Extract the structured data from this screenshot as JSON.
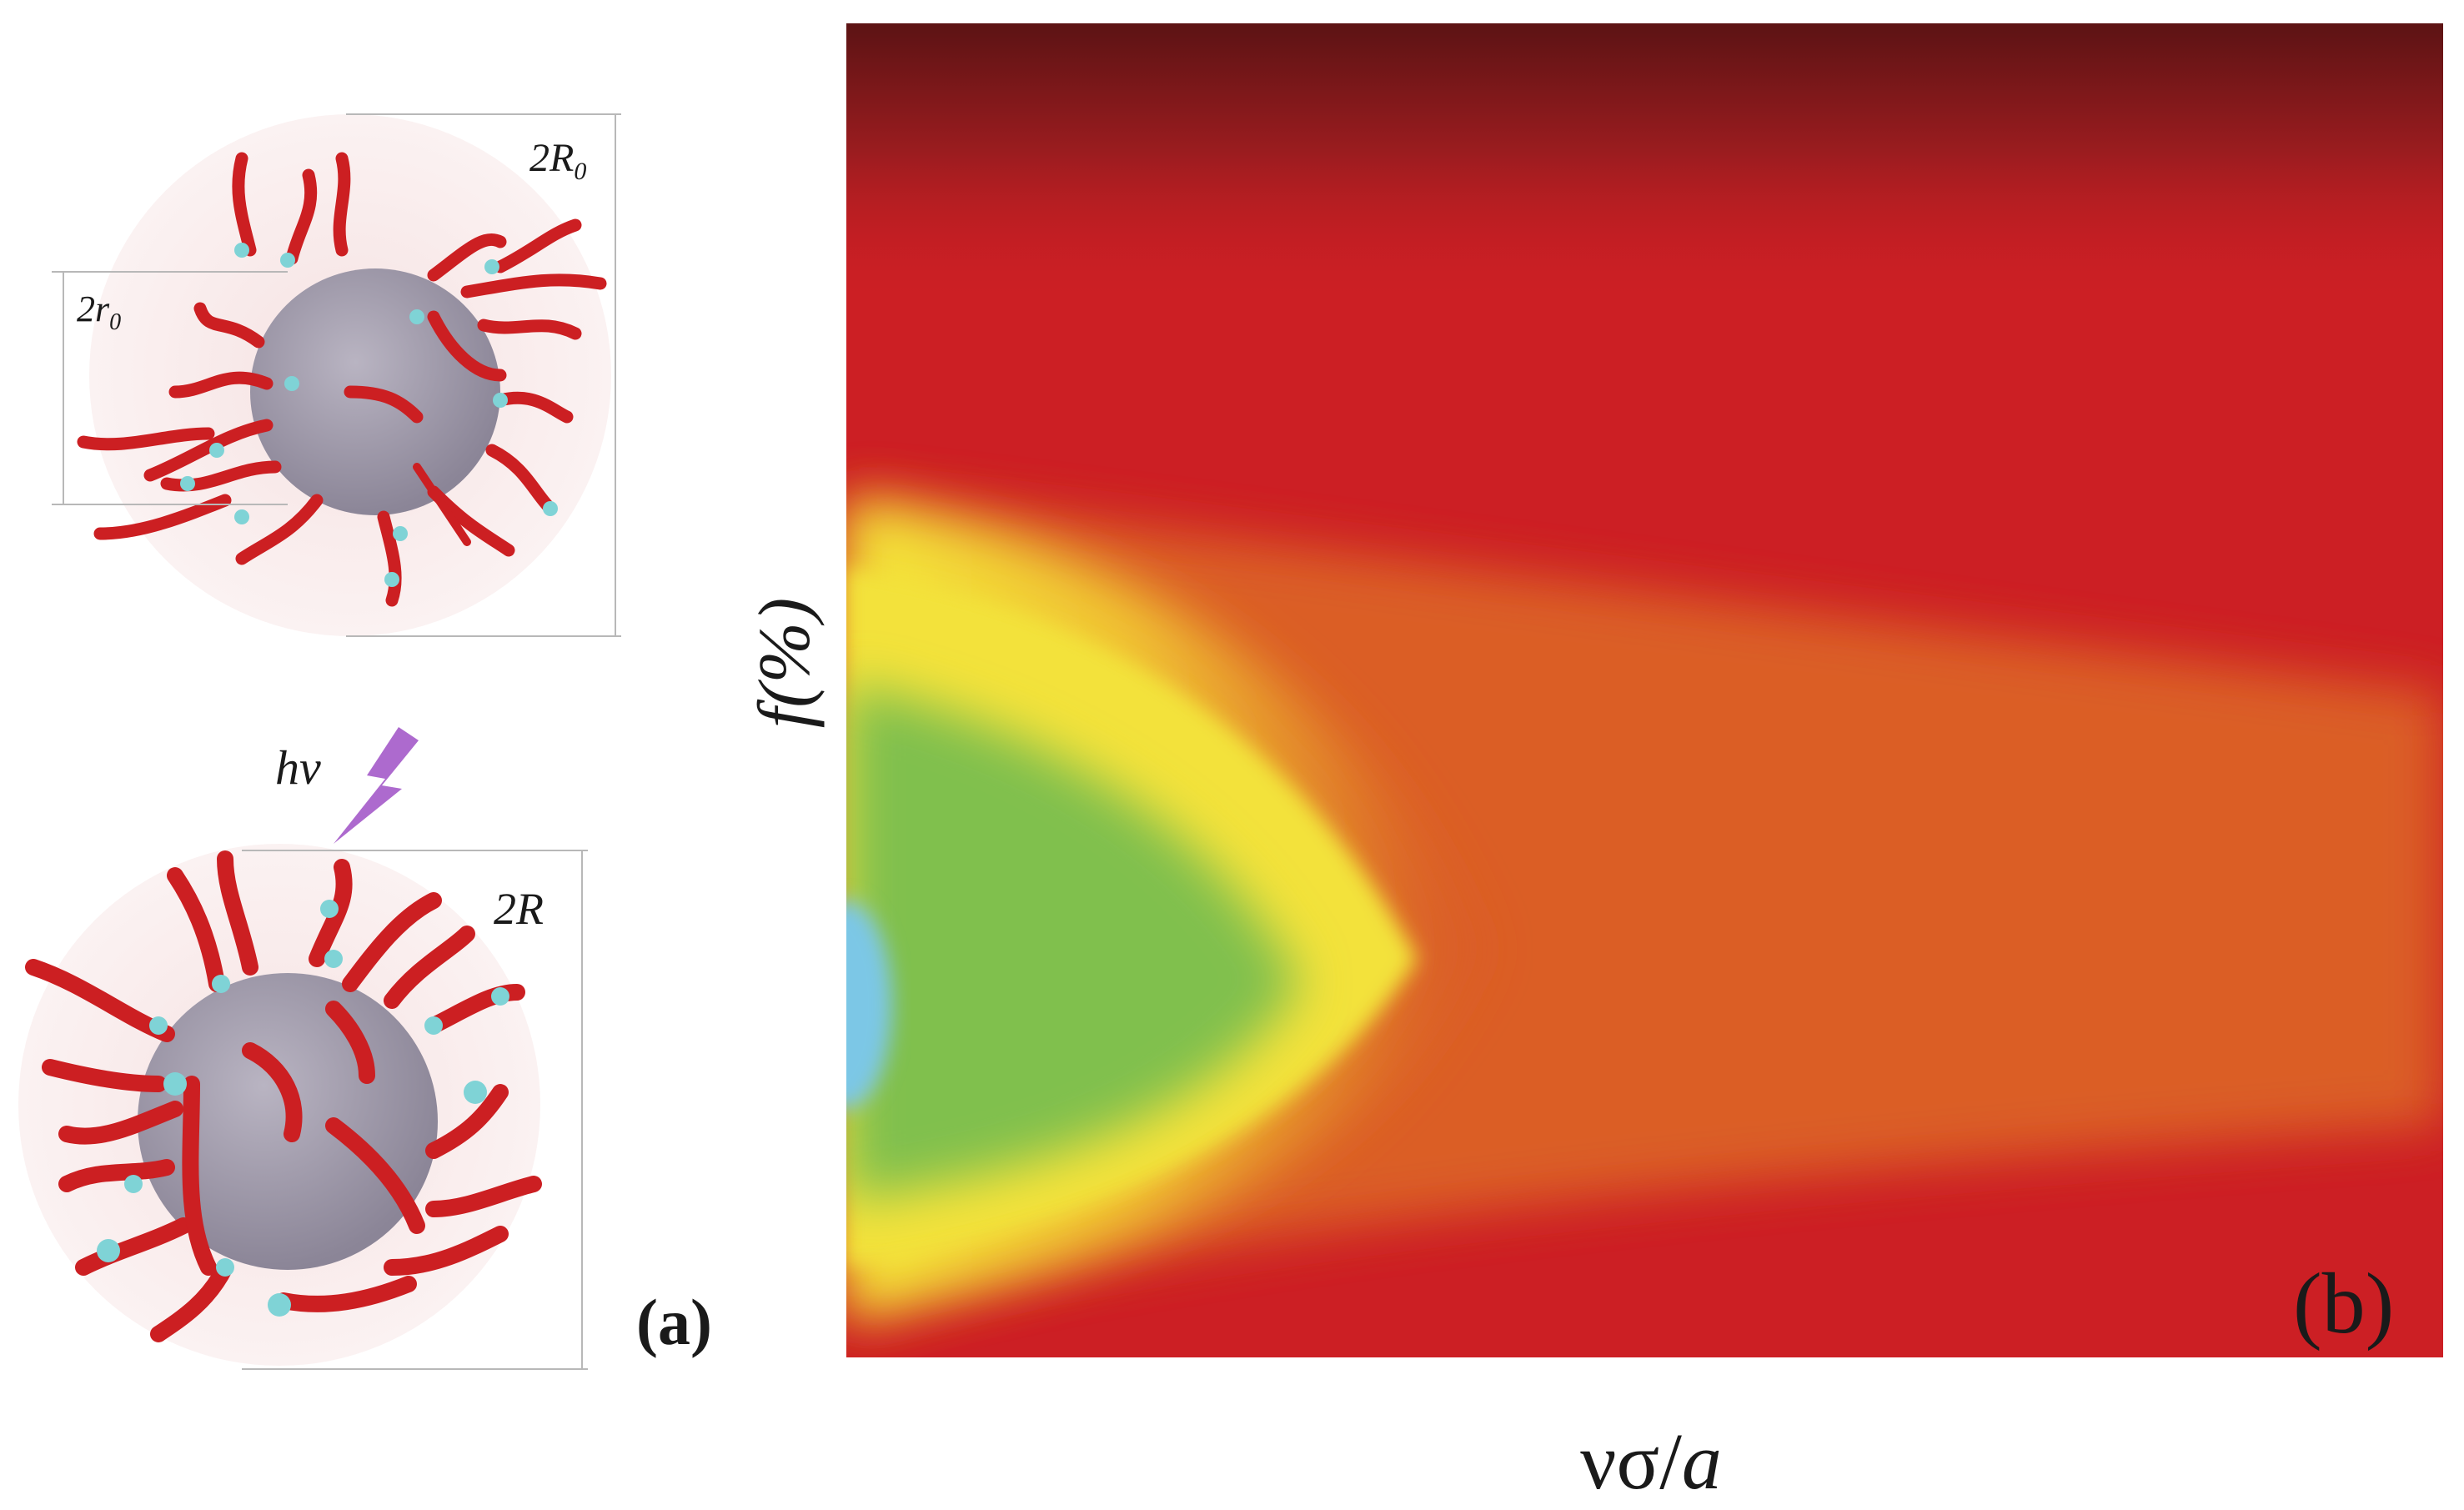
{
  "panel_a": {
    "label": "(a)",
    "top_particle": {
      "outer_diameter_label": "2R",
      "outer_diameter_sub": "0",
      "core_diameter_label": "2r",
      "core_diameter_sub": "0"
    },
    "light_label": "hv",
    "bottom_particle": {
      "outer_diameter_label": "2R"
    },
    "icons": [
      "lightning-bolt-icon"
    ],
    "colors": {
      "chain": "#cc1f22",
      "chain_end": "#7fd3d6",
      "core": "#9c96a6",
      "halo": "#f7e6e6",
      "bolt": "#a45ac9"
    }
  },
  "panel_b": {
    "label": "(b)",
    "y_axis_label": "f(%)",
    "x_axis_label_main": "νσ/",
    "x_axis_label_italic": "a",
    "colors": {
      "background_red": "#cc1f24",
      "top_dark": "#5c1314",
      "yellow": "#f4e73a",
      "green": "#7ec04d",
      "blue": "#7cc7e6",
      "orange": "#de6a25"
    }
  }
}
